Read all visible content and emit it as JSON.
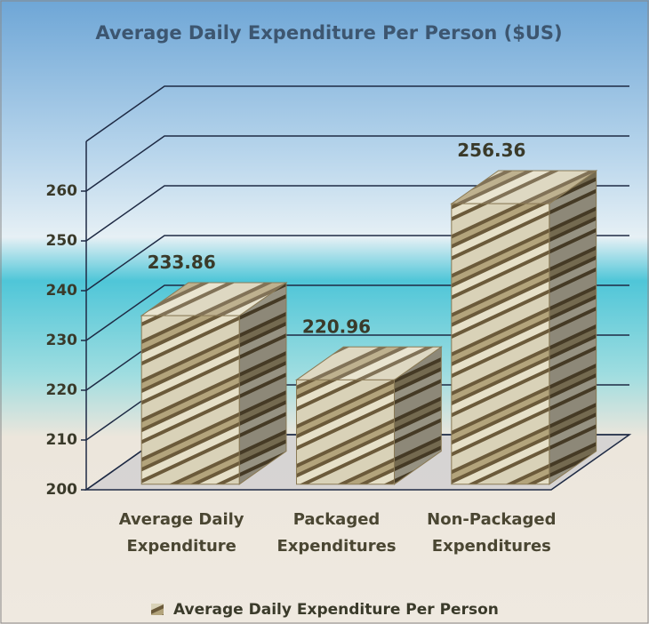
{
  "chart_data": {
    "type": "bar3d",
    "title": "Average Daily Expenditure Per Person ($US)",
    "categories": [
      "Average Daily Expenditure",
      "Packaged Expenditures",
      "Non-Packaged Expenditures"
    ],
    "series": [
      {
        "name": "Average Daily Expenditure Per Person",
        "color": "#8a7a55",
        "values": [
          233.86,
          220.96,
          256.36
        ]
      }
    ],
    "ylim": [
      200,
      270
    ],
    "yticks": [
      200,
      210,
      220,
      230,
      240,
      250,
      260
    ],
    "grid": true,
    "legend": "bottom"
  }
}
